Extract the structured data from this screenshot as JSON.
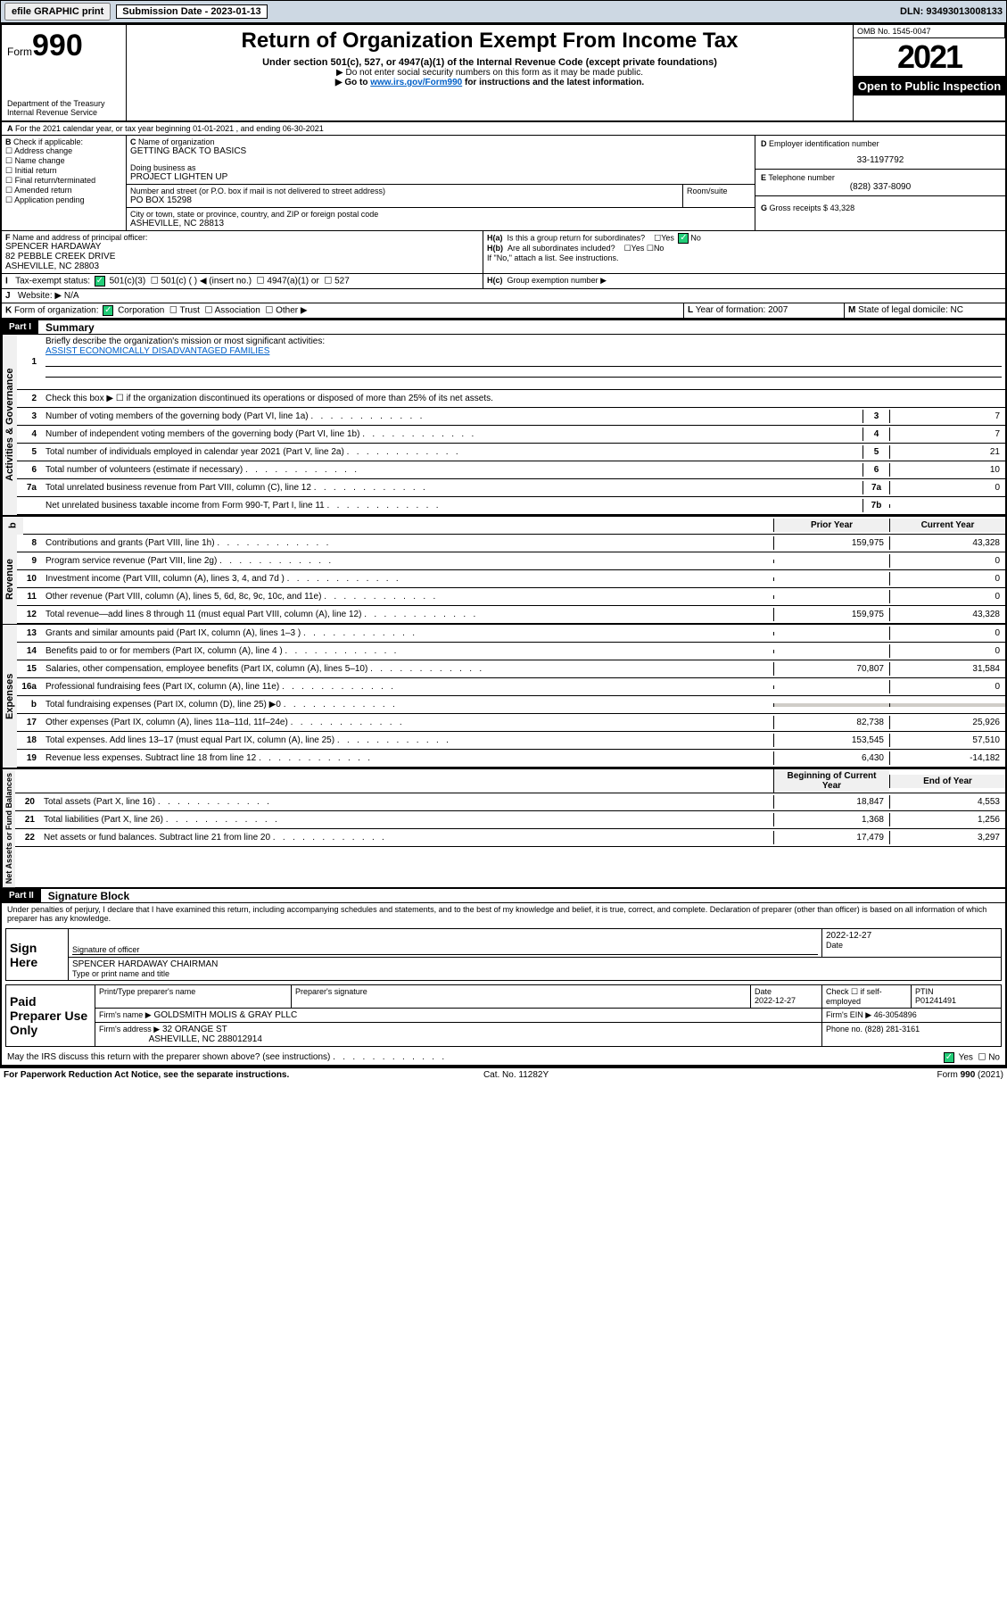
{
  "topbar": {
    "btn1": "efile GRAPHIC print",
    "subdate_label": "Submission Date - 2023-01-13",
    "dln": "DLN: 93493013008133"
  },
  "header": {
    "form_pre": "Form",
    "form_num": "990",
    "dept": "Department of the Treasury",
    "irs": "Internal Revenue Service",
    "title": "Return of Organization Exempt From Income Tax",
    "sub": "Under section 501(c), 527, or 4947(a)(1) of the Internal Revenue Code (except private foundations)",
    "note1": "▶ Do not enter social security numbers on this form as it may be made public.",
    "note2_pre": "▶ Go to ",
    "note2_link": "www.irs.gov/Form990",
    "note2_post": " for instructions and the latest information.",
    "omb": "OMB No. 1545-0047",
    "year": "2021",
    "otp": "Open to Public Inspection"
  },
  "A": {
    "txt": "For the 2021 calendar year, or tax year beginning 01-01-2021   , and ending 06-30-2021"
  },
  "B": {
    "label": "Check if applicable:",
    "items": [
      "Address change",
      "Name change",
      "Initial return",
      "Final return/terminated",
      "Amended return",
      "Application pending"
    ]
  },
  "C": {
    "name_label": "Name of organization",
    "name": "GETTING BACK TO BASICS",
    "dba_label": "Doing business as",
    "dba": "PROJECT LIGHTEN UP",
    "addr_label": "Number and street (or P.O. box if mail is not delivered to street address)",
    "room_label": "Room/suite",
    "addr": "PO BOX 15298",
    "city_label": "City or town, state or province, country, and ZIP or foreign postal code",
    "city": "ASHEVILLE, NC  28813"
  },
  "D": {
    "label": "Employer identification number",
    "val": "33-1197792"
  },
  "E": {
    "label": "Telephone number",
    "val": "(828) 337-8090"
  },
  "G": {
    "label": "Gross receipts $",
    "val": "43,328"
  },
  "F": {
    "label": "Name and address of principal officer:",
    "name": "SPENCER HARDAWAY",
    "addr1": "82 PEBBLE CREEK DRIVE",
    "addr2": "ASHEVILLE, NC  28803"
  },
  "H": {
    "a": "Is this a group return for subordinates?",
    "b": "Are all subordinates included?",
    "note": "If \"No,\" attach a list. See instructions.",
    "c": "Group exemption number ▶",
    "yes": "Yes",
    "no": "No"
  },
  "I": {
    "label": "Tax-exempt status:",
    "c3": "501(c)(3)",
    "c": "501(c) (  ) ◀ (insert no.)",
    "a1": "4947(a)(1) or",
    "527": "527"
  },
  "J": {
    "label": "Website: ▶",
    "val": "N/A"
  },
  "K": {
    "label": "Form of organization:",
    "opts": [
      "Corporation",
      "Trust",
      "Association",
      "Other ▶"
    ]
  },
  "L": {
    "label": "Year of formation:",
    "val": "2007"
  },
  "M": {
    "label": "State of legal domicile:",
    "val": "NC"
  },
  "part1": {
    "label": "Part I",
    "title": "Summary"
  },
  "summary": {
    "l1": "Briefly describe the organization's mission or most significant activities:",
    "l1val": "ASSIST ECONOMICALLY DISADVANTAGED FAMILIES",
    "l2": "Check this box ▶ ☐  if the organization discontinued its operations or disposed of more than 25% of its net assets.",
    "rows_ag": [
      {
        "n": "3",
        "t": "Number of voting members of the governing body (Part VI, line 1a)",
        "b": "3",
        "v": "7"
      },
      {
        "n": "4",
        "t": "Number of independent voting members of the governing body (Part VI, line 1b)",
        "b": "4",
        "v": "7"
      },
      {
        "n": "5",
        "t": "Total number of individuals employed in calendar year 2021 (Part V, line 2a)",
        "b": "5",
        "v": "21"
      },
      {
        "n": "6",
        "t": "Total number of volunteers (estimate if necessary)",
        "b": "6",
        "v": "10"
      },
      {
        "n": "7a",
        "t": "Total unrelated business revenue from Part VIII, column (C), line 12",
        "b": "7a",
        "v": "0"
      },
      {
        "n": "",
        "t": "Net unrelated business taxable income from Form 990-T, Part I, line 11",
        "b": "7b",
        "v": ""
      }
    ],
    "col_prior": "Prior Year",
    "col_curr": "Current Year",
    "rev": [
      {
        "n": "8",
        "t": "Contributions and grants (Part VIII, line 1h)",
        "p": "159,975",
        "c": "43,328"
      },
      {
        "n": "9",
        "t": "Program service revenue (Part VIII, line 2g)",
        "p": "",
        "c": "0"
      },
      {
        "n": "10",
        "t": "Investment income (Part VIII, column (A), lines 3, 4, and 7d )",
        "p": "",
        "c": "0"
      },
      {
        "n": "11",
        "t": "Other revenue (Part VIII, column (A), lines 5, 6d, 8c, 9c, 10c, and 11e)",
        "p": "",
        "c": "0"
      },
      {
        "n": "12",
        "t": "Total revenue—add lines 8 through 11 (must equal Part VIII, column (A), line 12)",
        "p": "159,975",
        "c": "43,328"
      }
    ],
    "exp": [
      {
        "n": "13",
        "t": "Grants and similar amounts paid (Part IX, column (A), lines 1–3 )",
        "p": "",
        "c": "0"
      },
      {
        "n": "14",
        "t": "Benefits paid to or for members (Part IX, column (A), line 4 )",
        "p": "",
        "c": "0"
      },
      {
        "n": "15",
        "t": "Salaries, other compensation, employee benefits (Part IX, column (A), lines 5–10)",
        "p": "70,807",
        "c": "31,584"
      },
      {
        "n": "16a",
        "t": "Professional fundraising fees (Part IX, column (A), line 11e)",
        "p": "",
        "c": "0"
      },
      {
        "n": "b",
        "t": "Total fundraising expenses (Part IX, column (D), line 25) ▶0",
        "p": "gray",
        "c": "gray"
      },
      {
        "n": "17",
        "t": "Other expenses (Part IX, column (A), lines 11a–11d, 11f–24e)",
        "p": "82,738",
        "c": "25,926"
      },
      {
        "n": "18",
        "t": "Total expenses. Add lines 13–17 (must equal Part IX, column (A), line 25)",
        "p": "153,545",
        "c": "57,510"
      },
      {
        "n": "19",
        "t": "Revenue less expenses. Subtract line 18 from line 12",
        "p": "6,430",
        "c": "-14,182"
      }
    ],
    "col_beg": "Beginning of Current Year",
    "col_end": "End of Year",
    "net": [
      {
        "n": "20",
        "t": "Total assets (Part X, line 16)",
        "p": "18,847",
        "c": "4,553"
      },
      {
        "n": "21",
        "t": "Total liabilities (Part X, line 26)",
        "p": "1,368",
        "c": "1,256"
      },
      {
        "n": "22",
        "t": "Net assets or fund balances. Subtract line 21 from line 20",
        "p": "17,479",
        "c": "3,297"
      }
    ],
    "side_ag": "Activities & Governance",
    "side_rev": "Revenue",
    "side_exp": "Expenses",
    "side_net": "Net Assets or Fund Balances"
  },
  "part2": {
    "label": "Part II",
    "title": "Signature Block"
  },
  "sig": {
    "decl": "Under penalties of perjury, I declare that I have examined this return, including accompanying schedules and statements, and to the best of my knowledge and belief, it is true, correct, and complete. Declaration of preparer (other than officer) is based on all information of which preparer has any knowledge.",
    "sign_here": "Sign Here",
    "sig_officer": "Signature of officer",
    "date": "Date",
    "date_val": "2022-12-27",
    "name_title": "SPENCER HARDAWAY CHAIRMAN",
    "name_label": "Type or print name and title",
    "paid": "Paid Preparer Use Only",
    "prep_name": "Print/Type preparer's name",
    "prep_sig": "Preparer's signature",
    "prep_date": "Date",
    "prep_date_val": "2022-12-27",
    "self_emp": "Check ☐ if self-employed",
    "ptin": "PTIN",
    "ptin_val": "P01241491",
    "firm_name_l": "Firm's name     ▶",
    "firm_name": "GOLDSMITH MOLIS & GRAY PLLC",
    "firm_ein_l": "Firm's EIN ▶",
    "firm_ein": "46-3054896",
    "firm_addr_l": "Firm's address ▶",
    "firm_addr1": "32 ORANGE ST",
    "firm_addr2": "ASHEVILLE, NC  288012914",
    "phone_l": "Phone no.",
    "phone": "(828) 281-3161",
    "discuss": "May the IRS discuss this return with the preparer shown above? (see instructions)",
    "yes": "Yes",
    "no": "No"
  },
  "footer": {
    "pra": "For Paperwork Reduction Act Notice, see the separate instructions.",
    "cat": "Cat. No. 11282Y",
    "form": "Form 990 (2021)"
  }
}
